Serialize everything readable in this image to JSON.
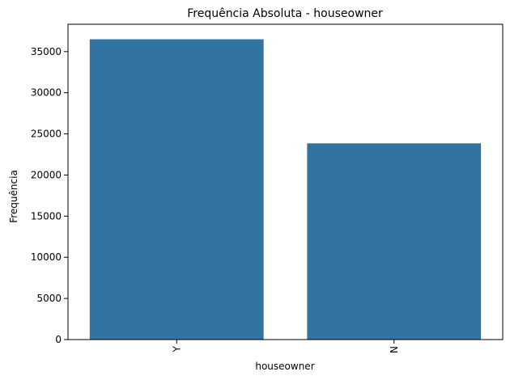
{
  "chart_data": {
    "type": "bar",
    "title": "Frequência Absoluta - houseowner",
    "xlabel": "houseowner",
    "ylabel": "Frequência",
    "categories": [
      "Y",
      "N"
    ],
    "values": [
      36500,
      23850
    ],
    "ylim": [
      0,
      38325
    ],
    "yticks": [
      0,
      5000,
      10000,
      15000,
      20000,
      25000,
      30000,
      35000
    ],
    "xtick_rotation": 90,
    "grid": false,
    "colors": {
      "bar": "#3274a1",
      "axis": "#000000",
      "background": "#ffffff"
    }
  }
}
